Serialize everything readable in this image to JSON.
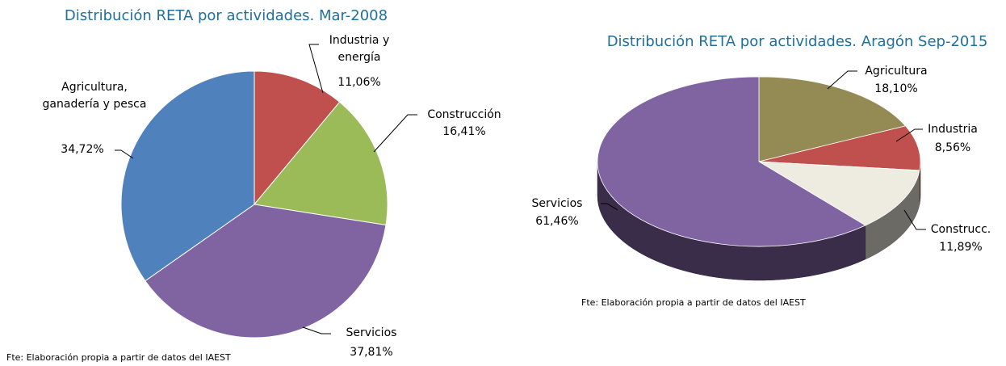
{
  "chart_data": [
    {
      "type": "pie",
      "title": "Distribución RETA por actividades. Mar-2008",
      "categories": [
        "Industria y energía",
        "Construcción",
        "Servicios",
        "Agricultura, ganadería y pesca"
      ],
      "values": [
        11.06,
        16.41,
        37.81,
        34.72
      ],
      "value_labels": [
        "11,06%",
        "16,41%",
        "37,81%",
        "34,72%"
      ],
      "colors": [
        "#c0504d",
        "#9bbb59",
        "#8064a2",
        "#4f81bd"
      ],
      "source": "Fte: Elaboración propia a partir de datos del IAEST"
    },
    {
      "type": "pie3d",
      "title": "Distribución RETA por actividades. Aragón Sep-2015",
      "categories": [
        "Agricultura",
        "Industria",
        "Construcc.",
        "Servicios"
      ],
      "values": [
        18.1,
        8.56,
        11.89,
        61.46
      ],
      "value_labels": [
        "18,10%",
        "8,56%",
        "11,89%",
        "61,46%"
      ],
      "colors": [
        "#948a54",
        "#c0504d",
        "#eeece1",
        "#8064a2"
      ],
      "source": "Fte: Elaboración propia a partir de datos del IAEST"
    }
  ]
}
